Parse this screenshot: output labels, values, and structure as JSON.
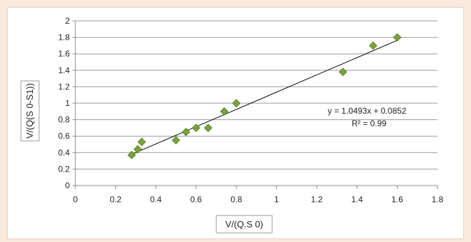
{
  "colors": {
    "page_background": "#fbe9dd",
    "marker": "#77a23c",
    "marker_stroke": "#5a7d2b",
    "trendline": "#000000",
    "grid": "#9a9a9a"
  },
  "chart_data": {
    "type": "scatter",
    "xlabel": "V/(Q.S 0)",
    "ylabel": "V/(Q(S 0-S1))",
    "xlim": [
      0,
      1.8
    ],
    "ylim": [
      0,
      2
    ],
    "x_ticks": [
      0,
      0.2,
      0.4,
      0.6,
      0.8,
      1,
      1.2,
      1.4,
      1.6,
      1.8
    ],
    "y_ticks": [
      0,
      0.2,
      0.4,
      0.6,
      0.8,
      1,
      1.2,
      1.4,
      1.6,
      1.8,
      2
    ],
    "x_tick_labels": [
      "0",
      "0.2",
      "0.4",
      "0.6",
      "0.8",
      "1",
      "1.2",
      "1.4",
      "1.6",
      "1.8"
    ],
    "y_tick_labels": [
      "0",
      "0.2",
      "0.4",
      "0.6",
      "0.8",
      "1",
      "1.2",
      "1.4",
      "1.6",
      "1.8",
      "2"
    ],
    "grid": "horizontal",
    "legend": "none",
    "marker": "diamond",
    "series": [
      {
        "x": [
          0.28,
          0.31,
          0.33,
          0.5,
          0.55,
          0.6,
          0.66,
          0.74,
          0.8,
          1.33,
          1.48,
          1.6
        ],
        "y": [
          0.37,
          0.44,
          0.53,
          0.55,
          0.65,
          0.7,
          0.7,
          0.9,
          1.0,
          1.38,
          1.7,
          1.8
        ]
      }
    ],
    "trendline": {
      "type": "linear",
      "slope": 1.0493,
      "intercept": 0.0852,
      "x_range": [
        0.28,
        1.6
      ],
      "equation": "y = 1.0493x + 0.0852",
      "r_squared": "R² = 0.99"
    }
  }
}
